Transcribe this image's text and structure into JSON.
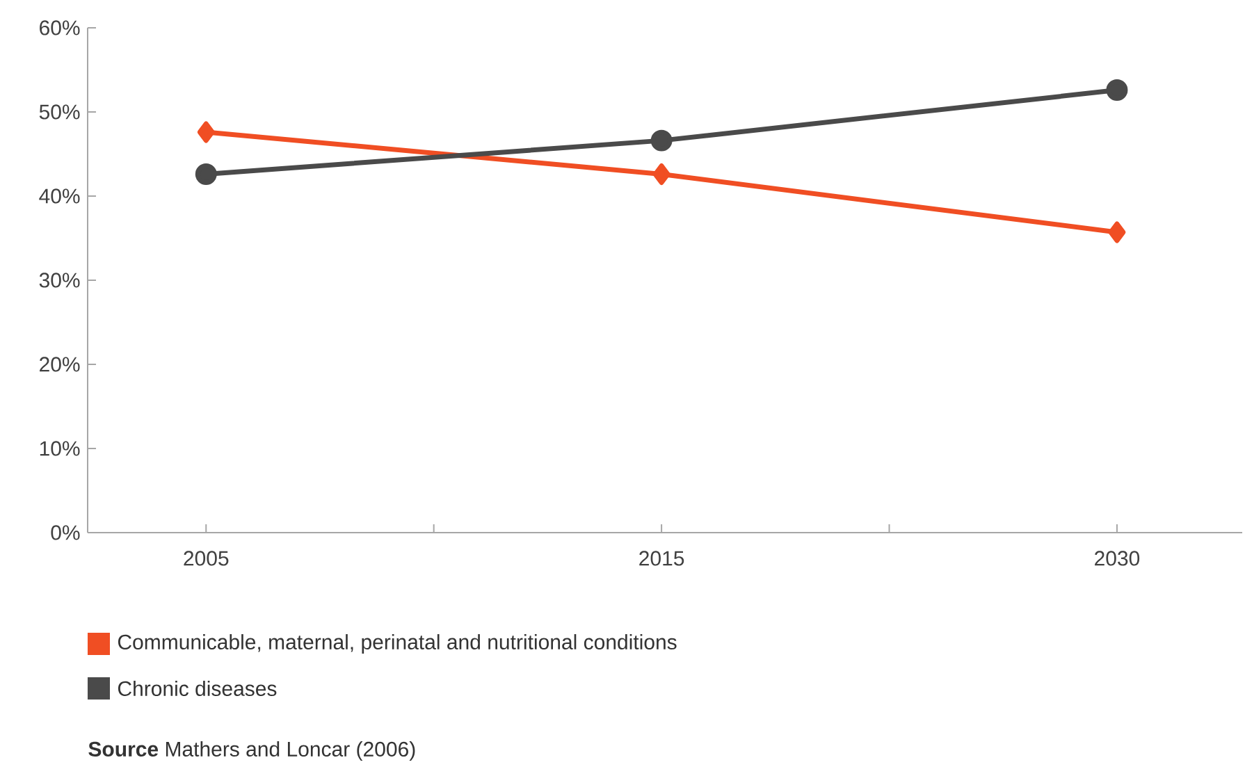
{
  "chart_data": {
    "type": "line",
    "categories": [
      "2005",
      "2015",
      "2030"
    ],
    "series": [
      {
        "name": "Communicable, maternal, perinatal and nutritional conditions",
        "color": "#f04e23",
        "marker": "diamond",
        "values": [
          47.6,
          42.6,
          35.7
        ]
      },
      {
        "name": "Chronic diseases",
        "color": "#4a4a4a",
        "marker": "circle",
        "values": [
          42.6,
          46.6,
          52.6
        ]
      }
    ],
    "ylim": [
      0,
      60
    ],
    "yticks": [
      {
        "value": 0,
        "label": "0%"
      },
      {
        "value": 10,
        "label": "10%"
      },
      {
        "value": 20,
        "label": "20%"
      },
      {
        "value": 30,
        "label": "30%"
      },
      {
        "value": 40,
        "label": "40%"
      },
      {
        "value": 50,
        "label": "50%"
      },
      {
        "value": 60,
        "label": "60%"
      }
    ],
    "grid": false,
    "legend": "bottom",
    "line_style": "solid",
    "annotations": [
      "**Source** Mathers and Loncar (2006)"
    ]
  }
}
